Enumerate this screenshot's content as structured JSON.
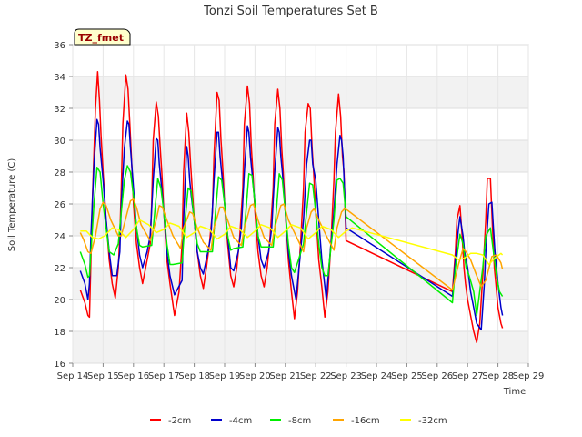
{
  "chart_data": {
    "type": "line",
    "title": "Tonzi Soil Temperatures Set B",
    "xlabel": "Time",
    "ylabel": "Soil Temperature (C)",
    "badge": "TZ_fmet",
    "ylim": [
      16,
      36
    ],
    "yticks": [
      16,
      18,
      20,
      22,
      24,
      26,
      28,
      30,
      32,
      34,
      36
    ],
    "xlim": [
      14,
      29
    ],
    "xticks": [
      14,
      15,
      16,
      17,
      18,
      19,
      20,
      21,
      22,
      23,
      24,
      25,
      26,
      27,
      28,
      29
    ],
    "xtick_labels": [
      "Sep 14",
      "Sep 15",
      "Sep 16",
      "Sep 17",
      "Sep 18",
      "Sep 19",
      "Sep 20",
      "Sep 21",
      "Sep 22",
      "Sep 23",
      "Sep 24",
      "Sep 25",
      "Sep 26",
      "Sep 27",
      "Sep 28",
      "Sep 29"
    ],
    "grid": true,
    "legend_position": "bottom",
    "series": [
      {
        "name": "-2cm",
        "color": "#ff0000",
        "x": [
          14.25,
          14.4,
          14.5,
          14.55,
          14.6,
          14.65,
          14.75,
          14.82,
          14.88,
          14.93,
          15.0,
          15.1,
          15.2,
          15.3,
          15.4,
          15.5,
          15.55,
          15.6,
          15.65,
          15.75,
          15.82,
          15.88,
          15.93,
          16.0,
          16.1,
          16.2,
          16.3,
          16.4,
          16.55,
          16.6,
          16.65,
          16.75,
          16.82,
          16.88,
          16.93,
          17.0,
          17.1,
          17.2,
          17.35,
          17.4,
          17.5,
          17.6,
          17.65,
          17.75,
          17.82,
          17.88,
          17.93,
          18.0,
          18.1,
          18.2,
          18.3,
          18.4,
          18.5,
          18.6,
          18.65,
          18.75,
          18.82,
          18.88,
          18.93,
          19.0,
          19.1,
          19.2,
          19.3,
          19.4,
          19.5,
          19.6,
          19.65,
          19.75,
          19.82,
          19.88,
          19.93,
          20.0,
          20.1,
          20.2,
          20.3,
          20.4,
          20.5,
          20.6,
          20.65,
          20.75,
          20.82,
          20.88,
          20.93,
          21.0,
          21.1,
          21.2,
          21.3,
          21.4,
          21.5,
          21.6,
          21.65,
          21.75,
          21.82,
          21.88,
          21.93,
          22.0,
          22.1,
          22.2,
          22.3,
          22.4,
          22.5,
          22.6,
          22.65,
          22.75,
          22.82,
          22.88,
          22.93,
          23.0,
          26.5,
          26.6,
          26.65,
          26.75,
          26.82,
          26.88,
          26.93,
          27.0,
          27.1,
          27.2,
          27.3,
          27.4,
          27.5,
          27.6,
          27.65,
          27.75,
          27.82,
          27.88,
          27.93,
          28.0,
          28.1,
          28.15
        ],
        "y": [
          20.6,
          19.8,
          19.0,
          18.9,
          22.5,
          26.4,
          32.0,
          34.3,
          32.5,
          30.3,
          28.0,
          25.0,
          22.5,
          21.0,
          20.1,
          22.0,
          24.0,
          27.0,
          31.0,
          34.1,
          33.2,
          31.0,
          29.0,
          26.0,
          23.5,
          22.0,
          21.0,
          22.0,
          23.5,
          26.0,
          30.0,
          32.4,
          31.5,
          29.5,
          28.0,
          25.5,
          22.5,
          21.0,
          19.0,
          19.5,
          20.5,
          23.5,
          28.0,
          31.7,
          30.5,
          28.5,
          27.0,
          25.0,
          23.0,
          21.5,
          20.7,
          22.0,
          23.5,
          25.5,
          29.0,
          33.0,
          32.5,
          30.0,
          28.5,
          26.0,
          23.5,
          21.5,
          20.8,
          22.0,
          24.0,
          27.0,
          31.0,
          33.4,
          32.3,
          29.5,
          28.0,
          25.5,
          23.0,
          21.5,
          20.8,
          22.0,
          24.0,
          27.0,
          31.0,
          33.2,
          32.0,
          29.5,
          28.0,
          25.5,
          22.5,
          20.5,
          18.8,
          20.5,
          23.5,
          27.0,
          30.5,
          32.3,
          32.0,
          29.5,
          28.0,
          25.5,
          22.5,
          20.8,
          18.9,
          20.5,
          23.5,
          27.5,
          30.5,
          32.9,
          31.5,
          29.0,
          28.0,
          23.7,
          20.5,
          23.0,
          25.0,
          25.9,
          24.0,
          22.0,
          21.0,
          20.0,
          19.0,
          18.0,
          17.3,
          18.5,
          21.5,
          25.0,
          27.6,
          27.6,
          24.5,
          22.0,
          21.0,
          19.5,
          18.5,
          18.2
        ]
      },
      {
        "name": "-4cm",
        "color": "#0000cc",
        "x": [
          14.25,
          14.4,
          14.5,
          14.55,
          14.6,
          14.7,
          14.8,
          14.85,
          14.9,
          15.0,
          15.1,
          15.2,
          15.3,
          15.45,
          15.55,
          15.6,
          15.7,
          15.8,
          15.85,
          15.9,
          16.0,
          16.1,
          16.2,
          16.3,
          16.45,
          16.55,
          16.65,
          16.75,
          16.8,
          16.85,
          16.9,
          17.0,
          17.1,
          17.2,
          17.35,
          17.6,
          17.65,
          17.75,
          17.8,
          17.85,
          17.9,
          18.0,
          18.1,
          18.2,
          18.3,
          18.45,
          18.55,
          18.65,
          18.75,
          18.8,
          18.85,
          18.9,
          19.0,
          19.1,
          19.2,
          19.3,
          19.45,
          19.55,
          19.65,
          19.75,
          19.8,
          19.85,
          19.9,
          20.0,
          20.1,
          20.2,
          20.3,
          20.45,
          20.55,
          20.65,
          20.75,
          20.8,
          20.85,
          20.9,
          21.0,
          21.1,
          21.2,
          21.35,
          21.5,
          21.6,
          21.7,
          21.8,
          21.85,
          21.9,
          22.0,
          22.1,
          22.2,
          22.35,
          22.5,
          22.6,
          22.7,
          22.8,
          22.85,
          22.9,
          23.0,
          26.5,
          26.6,
          26.7,
          26.75,
          26.85,
          26.9,
          27.0,
          27.1,
          27.2,
          27.3,
          27.45,
          27.55,
          27.6,
          27.7,
          27.8,
          27.85,
          27.9,
          28.0,
          28.1,
          28.15
        ],
        "y": [
          21.8,
          21.0,
          20.0,
          21.0,
          24.0,
          28.5,
          31.3,
          31.0,
          29.5,
          27.5,
          25.0,
          23.0,
          21.5,
          21.5,
          23.0,
          26.0,
          29.5,
          31.2,
          31.0,
          29.5,
          27.0,
          24.5,
          22.8,
          22.0,
          23.0,
          24.0,
          27.5,
          30.1,
          30.0,
          28.5,
          27.5,
          25.5,
          23.0,
          21.5,
          20.3,
          21.2,
          25.0,
          29.6,
          29.0,
          27.5,
          26.5,
          25.0,
          23.0,
          22.0,
          21.6,
          23.0,
          24.0,
          27.5,
          30.5,
          30.5,
          29.0,
          28.0,
          26.0,
          24.0,
          22.0,
          21.8,
          23.0,
          24.5,
          28.0,
          30.9,
          30.5,
          29.0,
          28.0,
          26.0,
          24.0,
          22.5,
          22.0,
          23.0,
          24.5,
          28.0,
          30.8,
          30.5,
          29.0,
          28.0,
          25.5,
          23.0,
          21.5,
          20.0,
          23.0,
          25.0,
          28.5,
          30.0,
          30.0,
          28.5,
          27.5,
          25.0,
          22.5,
          20.0,
          23.5,
          25.5,
          28.5,
          30.3,
          30.0,
          29.0,
          24.5,
          20.2,
          22.5,
          24.5,
          25.2,
          24.0,
          23.0,
          22.0,
          20.5,
          19.5,
          18.5,
          18.1,
          21.0,
          23.0,
          26.0,
          26.1,
          24.5,
          23.0,
          21.0,
          19.5,
          19.0
        ]
      },
      {
        "name": "-8cm",
        "color": "#00ee00",
        "x": [
          14.25,
          14.4,
          14.5,
          14.55,
          14.6,
          14.7,
          14.8,
          14.9,
          15.0,
          15.1,
          15.2,
          15.35,
          15.5,
          15.6,
          15.7,
          15.8,
          15.9,
          16.0,
          16.1,
          16.2,
          16.3,
          16.6,
          16.7,
          16.8,
          16.9,
          17.0,
          17.1,
          17.2,
          17.3,
          17.6,
          17.7,
          17.8,
          17.9,
          18.0,
          18.1,
          18.2,
          18.3,
          18.6,
          18.7,
          18.8,
          18.9,
          19.0,
          19.1,
          19.2,
          19.3,
          19.6,
          19.7,
          19.8,
          19.9,
          20.0,
          20.1,
          20.2,
          20.3,
          20.6,
          20.7,
          20.8,
          20.9,
          21.0,
          21.1,
          21.2,
          21.3,
          21.6,
          21.7,
          21.8,
          21.9,
          22.0,
          22.1,
          22.2,
          22.3,
          22.4,
          22.6,
          22.7,
          22.8,
          22.9,
          23.0,
          26.5,
          26.6,
          26.75,
          26.85,
          26.95,
          27.05,
          27.2,
          27.3,
          27.5,
          27.6,
          27.75,
          27.85,
          27.95,
          28.05,
          28.15
        ],
        "y": [
          23.0,
          22.2,
          21.4,
          21.5,
          23.0,
          26.0,
          28.3,
          28.0,
          26.0,
          24.5,
          23.0,
          22.8,
          23.5,
          25.5,
          27.5,
          28.4,
          28.0,
          26.5,
          24.5,
          23.4,
          23.3,
          23.4,
          25.5,
          27.6,
          27.0,
          25.5,
          23.5,
          22.2,
          22.2,
          22.3,
          25.0,
          27.0,
          26.8,
          25.0,
          23.5,
          23.0,
          23.0,
          23.0,
          25.5,
          27.7,
          27.5,
          26.0,
          24.0,
          23.1,
          23.2,
          23.3,
          25.5,
          27.9,
          27.8,
          26.0,
          24.0,
          23.3,
          23.3,
          23.3,
          25.5,
          27.9,
          27.5,
          25.5,
          23.5,
          22.0,
          21.7,
          23.5,
          25.5,
          27.3,
          27.2,
          25.5,
          23.5,
          22.0,
          21.5,
          21.5,
          25.0,
          27.5,
          27.6,
          27.3,
          25.2,
          19.8,
          22.0,
          24.1,
          23.5,
          22.0,
          21.5,
          20.5,
          19.0,
          22.0,
          24.0,
          24.5,
          23.0,
          21.5,
          20.5,
          20.2
        ]
      },
      {
        "name": "-16cm",
        "color": "#ffa500",
        "x": [
          14.25,
          14.35,
          14.5,
          14.6,
          14.75,
          14.9,
          15.0,
          15.1,
          15.25,
          15.5,
          15.6,
          15.8,
          15.9,
          16.0,
          16.1,
          16.25,
          16.55,
          16.75,
          16.85,
          16.95,
          17.1,
          17.3,
          17.55,
          17.65,
          17.85,
          17.95,
          18.1,
          18.3,
          18.55,
          18.65,
          18.85,
          18.95,
          19.1,
          19.3,
          19.55,
          19.65,
          19.85,
          19.95,
          20.1,
          20.3,
          20.55,
          20.65,
          20.85,
          20.95,
          21.1,
          21.35,
          21.6,
          21.7,
          21.85,
          21.95,
          22.1,
          22.35,
          22.6,
          22.7,
          22.85,
          22.95,
          23.05,
          26.5,
          26.7,
          26.85,
          26.95,
          27.1,
          27.3,
          27.45,
          27.6,
          27.8,
          27.95,
          28.1,
          28.15
        ],
        "y": [
          24.2,
          23.8,
          23.0,
          22.9,
          24.0,
          25.7,
          26.1,
          25.9,
          25.0,
          24.0,
          24.0,
          25.5,
          26.2,
          26.3,
          25.8,
          24.7,
          23.7,
          25.0,
          25.9,
          25.8,
          25.0,
          24.0,
          23.2,
          24.5,
          25.5,
          25.4,
          24.5,
          23.6,
          23.1,
          24.5,
          25.8,
          25.8,
          25.0,
          23.9,
          23.4,
          24.5,
          25.9,
          26.0,
          25.0,
          23.9,
          23.4,
          24.5,
          25.9,
          26.0,
          25.0,
          24.0,
          23.0,
          24.5,
          25.5,
          25.7,
          25.0,
          24.0,
          23.1,
          24.5,
          25.5,
          25.7,
          25.6,
          20.6,
          22.2,
          23.2,
          23.0,
          22.5,
          21.5,
          20.8,
          21.2,
          22.7,
          22.8,
          22.3,
          21.9
        ]
      },
      {
        "name": "-32cm",
        "color": "#ffff00",
        "x": [
          14.25,
          14.45,
          14.65,
          14.85,
          15.05,
          15.3,
          15.5,
          15.75,
          16.0,
          16.2,
          16.5,
          16.75,
          17.0,
          17.2,
          17.5,
          17.75,
          18.0,
          18.2,
          18.5,
          18.75,
          19.0,
          19.2,
          19.5,
          19.75,
          20.0,
          20.2,
          20.5,
          20.75,
          21.0,
          21.2,
          21.5,
          21.75,
          22.0,
          22.2,
          22.5,
          22.75,
          23.0,
          23.2,
          26.5,
          26.7,
          26.9,
          27.1,
          27.3,
          27.5,
          27.7,
          27.9,
          28.1,
          28.15
        ],
        "y": [
          24.3,
          24.3,
          23.9,
          23.8,
          24.0,
          24.5,
          24.4,
          23.9,
          24.4,
          25.0,
          24.7,
          24.2,
          24.4,
          24.8,
          24.6,
          23.9,
          24.2,
          24.6,
          24.4,
          23.8,
          24.1,
          24.6,
          24.4,
          23.9,
          24.3,
          24.7,
          24.5,
          23.9,
          24.3,
          24.7,
          24.5,
          23.8,
          24.2,
          24.6,
          24.4,
          23.9,
          24.3,
          24.5,
          22.8,
          22.5,
          22.6,
          22.9,
          22.9,
          22.8,
          22.2,
          22.6,
          22.9,
          22.8
        ]
      }
    ]
  }
}
